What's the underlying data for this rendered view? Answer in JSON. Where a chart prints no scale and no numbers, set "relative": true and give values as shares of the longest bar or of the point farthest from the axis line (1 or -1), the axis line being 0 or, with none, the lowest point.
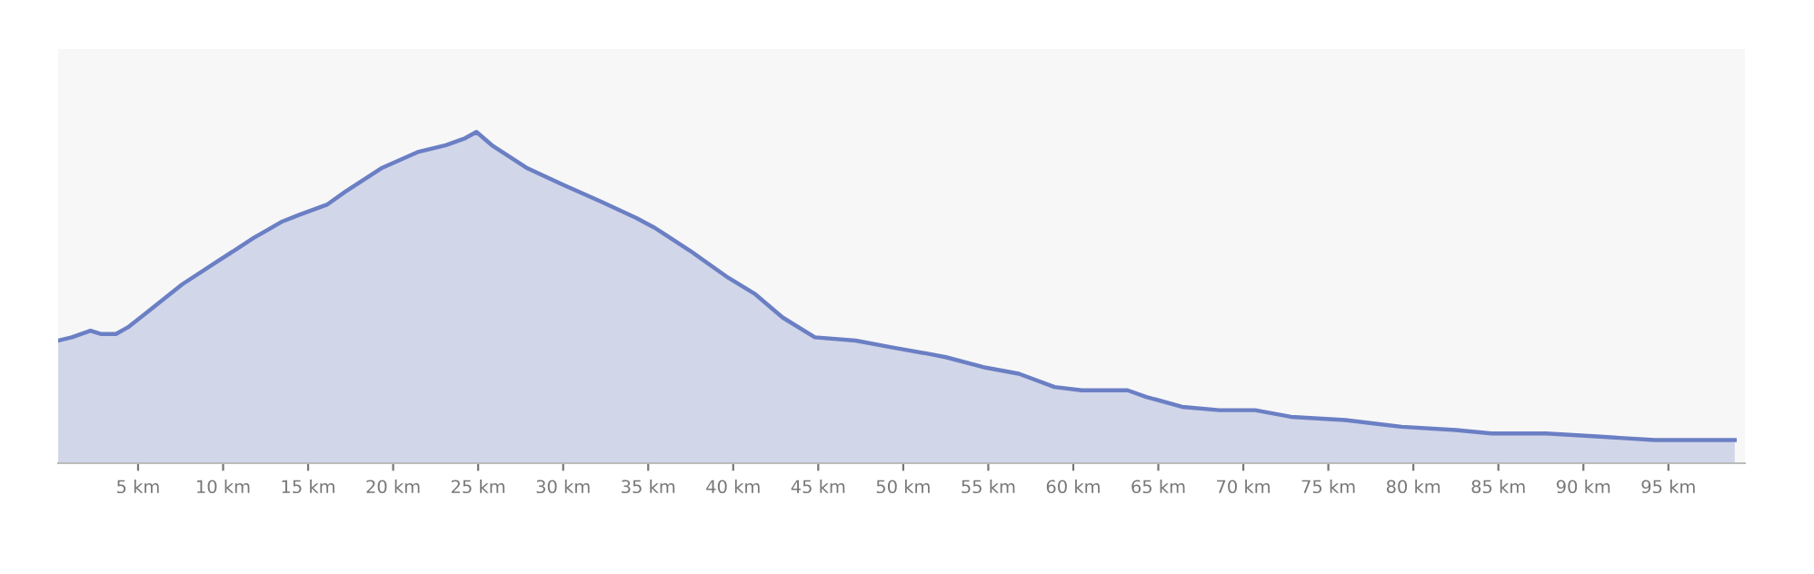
{
  "chart_data": {
    "type": "area",
    "relative": true,
    "color": "#6b7fc4",
    "grid": false,
    "x": [
      0.3,
      1.1,
      2.2,
      2.8,
      3.7,
      4.4,
      5.4,
      7.6,
      9.7,
      11.8,
      13.5,
      14.5,
      16.1,
      17.2,
      19.3,
      21.5,
      23.1,
      24.2,
      24.9,
      25.8,
      27.9,
      30.0,
      32.2,
      34.3,
      35.4,
      37.5,
      39.7,
      41.3,
      42.9,
      44.8,
      47.2,
      49.3,
      51.5,
      52.5,
      54.7,
      56.8,
      58.9,
      60.5,
      63.2,
      64.3,
      66.4,
      68.6,
      70.7,
      72.8,
      76.0,
      79.3,
      82.5,
      84.6,
      87.8,
      91.0,
      94.2,
      96.9,
      98.9
    ],
    "values": [
      0.37,
      0.38,
      0.4,
      0.39,
      0.39,
      0.41,
      0.45,
      0.54,
      0.61,
      0.68,
      0.73,
      0.75,
      0.78,
      0.82,
      0.89,
      0.94,
      0.96,
      0.98,
      1,
      0.96,
      0.89,
      0.84,
      0.79,
      0.74,
      0.71,
      0.64,
      0.56,
      0.51,
      0.44,
      0.38,
      0.37,
      0.35,
      0.33,
      0.32,
      0.29,
      0.27,
      0.23,
      0.22,
      0.22,
      0.2,
      0.17,
      0.16,
      0.16,
      0.14,
      0.13,
      0.11,
      0.1,
      0.09,
      0.09,
      0.08,
      0.07,
      0.07,
      0.07
    ],
    "xlim": [
      0.3,
      99.5
    ],
    "xticks": [
      {
        "value": 5,
        "label": "5 km"
      },
      {
        "value": 10,
        "label": "10 km"
      },
      {
        "value": 15,
        "label": "15 km"
      },
      {
        "value": 20,
        "label": "20 km"
      },
      {
        "value": 25,
        "label": "25 km"
      },
      {
        "value": 30,
        "label": "30 km"
      },
      {
        "value": 35,
        "label": "35 km"
      },
      {
        "value": 40,
        "label": "40 km"
      },
      {
        "value": 45,
        "label": "45 km"
      },
      {
        "value": 50,
        "label": "50 km"
      },
      {
        "value": 55,
        "label": "55 km"
      },
      {
        "value": 60,
        "label": "60 km"
      },
      {
        "value": 65,
        "label": "65 km"
      },
      {
        "value": 70,
        "label": "70 km"
      },
      {
        "value": 75,
        "label": "75 km"
      },
      {
        "value": 80,
        "label": "80 km"
      },
      {
        "value": 85,
        "label": "85 km"
      },
      {
        "value": 90,
        "label": "90 km"
      },
      {
        "value": 95,
        "label": "95 km"
      }
    ],
    "tick_labels": "x"
  }
}
